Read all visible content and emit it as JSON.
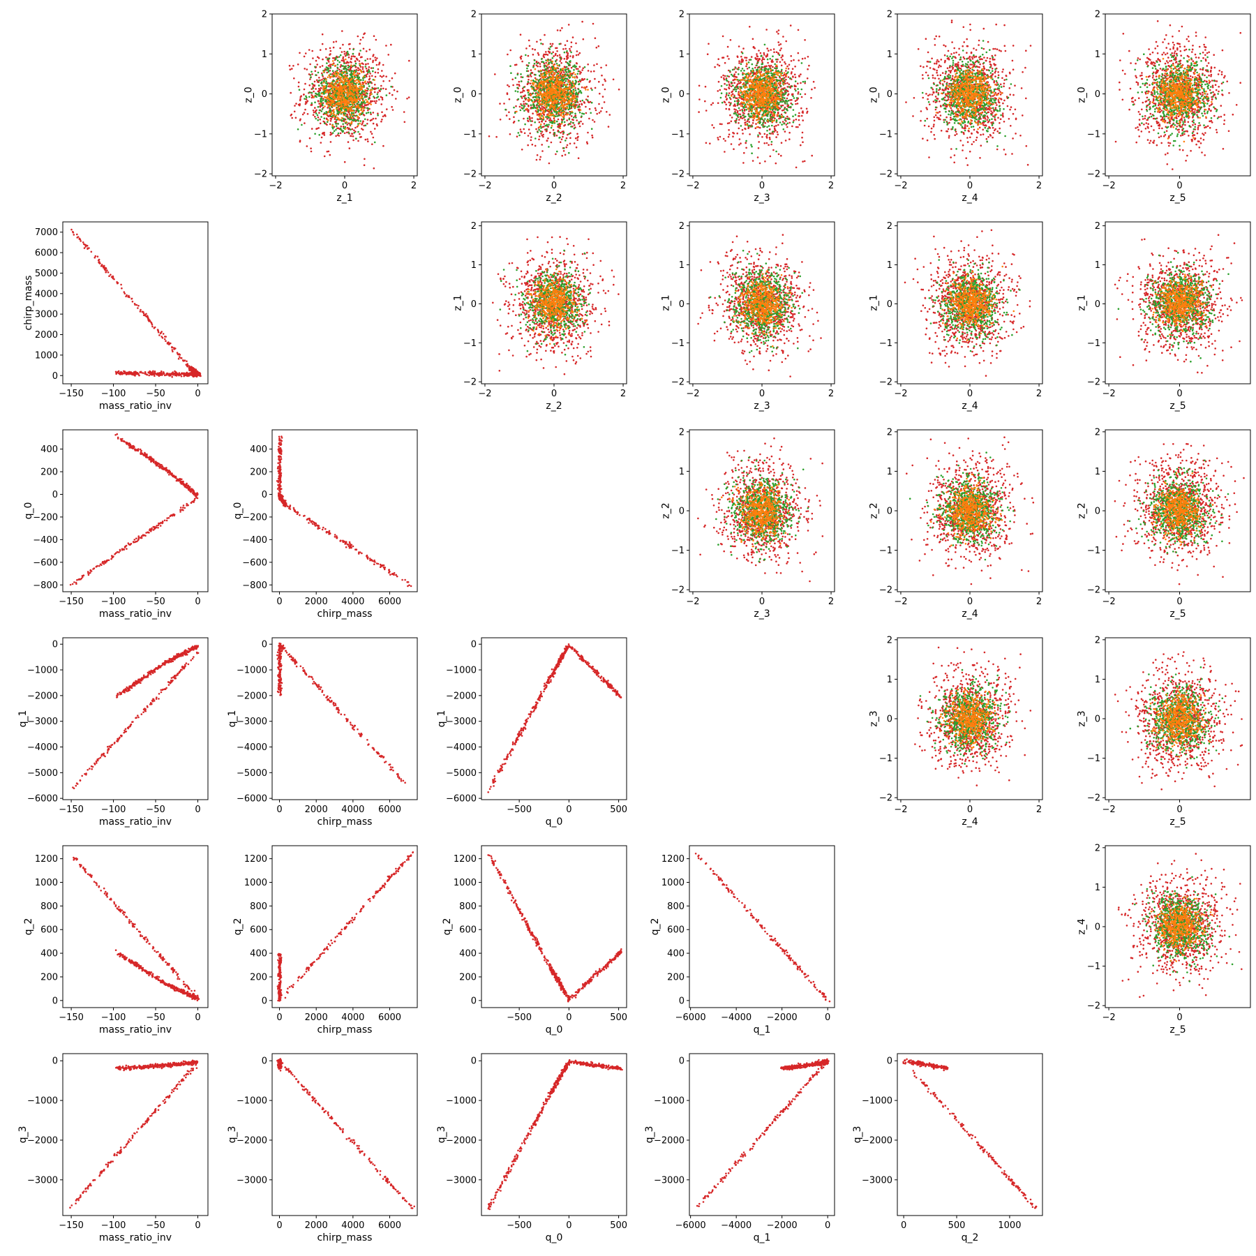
{
  "figure": {
    "colors": {
      "red": "#d62728",
      "green": "#2ca02c",
      "orange": "#ff7f0e",
      "frame": "#000000"
    }
  },
  "chart_data": [
    {
      "row": 0,
      "col": 1,
      "type": "scatter",
      "pattern": "gaussian",
      "xlabel": "z_1",
      "ylabel": "z_0",
      "xlim": [
        -2.1,
        2.1
      ],
      "ylim": [
        -2.05,
        2.0
      ],
      "xticks": [
        -2,
        0,
        2
      ],
      "yticks": [
        -2,
        -1,
        0,
        1,
        2
      ]
    },
    {
      "row": 0,
      "col": 2,
      "type": "scatter",
      "pattern": "gaussian",
      "xlabel": "z_2",
      "ylabel": "z_0",
      "xlim": [
        -2.1,
        2.1
      ],
      "ylim": [
        -2.05,
        2.0
      ],
      "xticks": [
        -2,
        0,
        2
      ],
      "yticks": [
        -2,
        -1,
        0,
        1,
        2
      ]
    },
    {
      "row": 0,
      "col": 3,
      "type": "scatter",
      "pattern": "gaussian",
      "xlabel": "z_3",
      "ylabel": "z_0",
      "xlim": [
        -2.1,
        2.1
      ],
      "ylim": [
        -2.05,
        2.0
      ],
      "xticks": [
        -2,
        0,
        2
      ],
      "yticks": [
        -2,
        -1,
        0,
        1,
        2
      ]
    },
    {
      "row": 0,
      "col": 4,
      "type": "scatter",
      "pattern": "gaussian",
      "xlabel": "z_4",
      "ylabel": "z_0",
      "xlim": [
        -2.1,
        2.1
      ],
      "ylim": [
        -2.05,
        2.0
      ],
      "xticks": [
        -2,
        0,
        2
      ],
      "yticks": [
        -2,
        -1,
        0,
        1,
        2
      ]
    },
    {
      "row": 0,
      "col": 5,
      "type": "scatter",
      "pattern": "gaussian",
      "xlabel": "z_5",
      "ylabel": "z_0",
      "xlim": [
        -2.1,
        2.0
      ],
      "ylim": [
        -2.05,
        2.0
      ],
      "xticks": [
        -2,
        0
      ],
      "yticks": [
        -2,
        -1,
        0,
        1,
        2
      ]
    },
    {
      "row": 1,
      "col": 0,
      "type": "scatter",
      "pattern": "line",
      "xlabel": "mass_ratio_inv",
      "ylabel": "chirp_mass",
      "xlim": [
        -160,
        12
      ],
      "ylim": [
        -400,
        7500
      ],
      "xticks": [
        -150,
        -100,
        -50,
        0
      ],
      "yticks": [
        0,
        1000,
        2000,
        3000,
        4000,
        5000,
        6000,
        7000
      ],
      "segments": [
        [
          [
            -152,
            7250
          ],
          [
            -10,
            400
          ],
          [
            2,
            50
          ]
        ],
        [
          [
            -97,
            120
          ],
          [
            -40,
            80
          ],
          [
            2,
            40
          ]
        ]
      ]
    },
    {
      "row": 1,
      "col": 2,
      "type": "scatter",
      "pattern": "gaussian",
      "xlabel": "z_2",
      "ylabel": "z_1",
      "xlim": [
        -2.1,
        2.1
      ],
      "ylim": [
        -2.05,
        2.1
      ],
      "xticks": [
        -2,
        0,
        2
      ],
      "yticks": [
        -2,
        -1,
        0,
        1,
        2
      ]
    },
    {
      "row": 1,
      "col": 3,
      "type": "scatter",
      "pattern": "gaussian",
      "xlabel": "z_3",
      "ylabel": "z_1",
      "xlim": [
        -2.1,
        2.1
      ],
      "ylim": [
        -2.05,
        2.1
      ],
      "xticks": [
        -2,
        0,
        2
      ],
      "yticks": [
        -2,
        -1,
        0,
        1,
        2
      ]
    },
    {
      "row": 1,
      "col": 4,
      "type": "scatter",
      "pattern": "gaussian",
      "xlabel": "z_4",
      "ylabel": "z_1",
      "xlim": [
        -2.1,
        2.1
      ],
      "ylim": [
        -2.05,
        2.1
      ],
      "xticks": [
        -2,
        0,
        2
      ],
      "yticks": [
        -2,
        -1,
        0,
        1,
        2
      ]
    },
    {
      "row": 1,
      "col": 5,
      "type": "scatter",
      "pattern": "gaussian",
      "xlabel": "z_5",
      "ylabel": "z_1",
      "xlim": [
        -2.1,
        2.0
      ],
      "ylim": [
        -2.05,
        2.1
      ],
      "xticks": [
        -2,
        0
      ],
      "yticks": [
        -2,
        -1,
        0,
        1,
        2
      ]
    },
    {
      "row": 2,
      "col": 0,
      "type": "scatter",
      "pattern": "line",
      "xlabel": "mass_ratio_inv",
      "ylabel": "q_0",
      "xlim": [
        -160,
        12
      ],
      "ylim": [
        -860,
        570
      ],
      "xticks": [
        -150,
        -100,
        -50,
        0
      ],
      "yticks": [
        -800,
        -600,
        -400,
        -200,
        0,
        200,
        400
      ],
      "segments": [
        [
          [
            -152,
            -810
          ],
          [
            0,
            -30
          ]
        ],
        [
          [
            -97,
            520
          ],
          [
            -40,
            230
          ],
          [
            0,
            -10
          ]
        ]
      ]
    },
    {
      "row": 2,
      "col": 1,
      "type": "scatter",
      "pattern": "line",
      "xlabel": "chirp_mass",
      "ylabel": "q_0",
      "xlim": [
        -400,
        7500
      ],
      "ylim": [
        -860,
        570
      ],
      "xticks": [
        0,
        2000,
        4000,
        6000
      ],
      "yticks": [
        -800,
        -600,
        -400,
        -200,
        0,
        200,
        400
      ],
      "segments": [
        [
          [
            7250,
            -810
          ],
          [
            300,
            -90
          ],
          [
            0,
            -10
          ]
        ],
        [
          [
            20,
            520
          ],
          [
            10,
            0
          ]
        ]
      ]
    },
    {
      "row": 2,
      "col": 3,
      "type": "scatter",
      "pattern": "gaussian",
      "xlabel": "z_3",
      "ylabel": "z_2",
      "xlim": [
        -2.1,
        2.1
      ],
      "ylim": [
        -2.05,
        2.05
      ],
      "xticks": [
        -2,
        0,
        2
      ],
      "yticks": [
        -2,
        -1,
        0,
        1,
        2
      ]
    },
    {
      "row": 2,
      "col": 4,
      "type": "scatter",
      "pattern": "gaussian",
      "xlabel": "z_4",
      "ylabel": "z_2",
      "xlim": [
        -2.1,
        2.1
      ],
      "ylim": [
        -2.05,
        2.05
      ],
      "xticks": [
        -2,
        0,
        2
      ],
      "yticks": [
        -2,
        -1,
        0,
        1,
        2
      ]
    },
    {
      "row": 2,
      "col": 5,
      "type": "scatter",
      "pattern": "gaussian",
      "xlabel": "z_5",
      "ylabel": "z_2",
      "xlim": [
        -2.1,
        2.0
      ],
      "ylim": [
        -2.05,
        2.05
      ],
      "xticks": [
        -2,
        0
      ],
      "yticks": [
        -2,
        -1,
        0,
        1,
        2
      ]
    },
    {
      "row": 3,
      "col": 0,
      "type": "scatter",
      "pattern": "line",
      "xlabel": "mass_ratio_inv",
      "ylabel": "q_1",
      "xlim": [
        -160,
        12
      ],
      "ylim": [
        -6050,
        250
      ],
      "xticks": [
        -150,
        -100,
        -50,
        0
      ],
      "yticks": [
        -6000,
        -5000,
        -4000,
        -3000,
        -2000,
        -1000,
        0
      ],
      "segments": [
        [
          [
            -152,
            -5750
          ],
          [
            0,
            -300
          ]
        ],
        [
          [
            -97,
            -2050
          ],
          [
            -40,
            -750
          ],
          [
            0,
            -80
          ]
        ]
      ]
    },
    {
      "row": 3,
      "col": 1,
      "type": "scatter",
      "pattern": "line",
      "xlabel": "chirp_mass",
      "ylabel": "q_1",
      "xlim": [
        -400,
        7500
      ],
      "ylim": [
        -6050,
        250
      ],
      "xticks": [
        0,
        2000,
        4000,
        6000
      ],
      "yticks": [
        -6000,
        -5000,
        -4000,
        -3000,
        -2000,
        -1000,
        0
      ],
      "segments": [
        [
          [
            7250,
            -5750
          ],
          [
            0,
            0
          ]
        ],
        [
          [
            20,
            -2050
          ],
          [
            10,
            0
          ]
        ]
      ]
    },
    {
      "row": 3,
      "col": 2,
      "type": "scatter",
      "pattern": "line",
      "xlabel": "q_0",
      "ylabel": "q_1",
      "xlim": [
        -880,
        580
      ],
      "ylim": [
        -6050,
        250
      ],
      "xticks": [
        -500,
        0,
        500
      ],
      "yticks": [
        -6000,
        -5000,
        -4000,
        -3000,
        -2000,
        -1000,
        0
      ],
      "segments": [
        [
          [
            -810,
            -5750
          ],
          [
            -200,
            -1400
          ],
          [
            0,
            -30
          ]
        ],
        [
          [
            0,
            -30
          ],
          [
            520,
            -2050
          ]
        ]
      ]
    },
    {
      "row": 3,
      "col": 4,
      "type": "scatter",
      "pattern": "gaussian",
      "xlabel": "z_4",
      "ylabel": "z_3",
      "xlim": [
        -2.1,
        2.1
      ],
      "ylim": [
        -2.05,
        2.05
      ],
      "xticks": [
        -2,
        0,
        2
      ],
      "yticks": [
        -2,
        -1,
        0,
        1,
        2
      ]
    },
    {
      "row": 3,
      "col": 5,
      "type": "scatter",
      "pattern": "gaussian",
      "xlabel": "z_5",
      "ylabel": "z_3",
      "xlim": [
        -2.1,
        2.0
      ],
      "ylim": [
        -2.05,
        2.05
      ],
      "xticks": [
        -2,
        0
      ],
      "yticks": [
        -2,
        -1,
        0,
        1,
        2
      ]
    },
    {
      "row": 4,
      "col": 0,
      "type": "scatter",
      "pattern": "line",
      "xlabel": "mass_ratio_inv",
      "ylabel": "q_2",
      "xlim": [
        -160,
        12
      ],
      "ylim": [
        -60,
        1310
      ],
      "xticks": [
        -150,
        -100,
        -50,
        0
      ],
      "yticks": [
        0,
        200,
        400,
        600,
        800,
        1000,
        1200
      ],
      "segments": [
        [
          [
            -152,
            1250
          ],
          [
            0,
            20
          ]
        ],
        [
          [
            -97,
            410
          ],
          [
            -40,
            150
          ],
          [
            0,
            10
          ]
        ]
      ]
    },
    {
      "row": 4,
      "col": 1,
      "type": "scatter",
      "pattern": "line",
      "xlabel": "chirp_mass",
      "ylabel": "q_2",
      "xlim": [
        -400,
        7500
      ],
      "ylim": [
        -60,
        1310
      ],
      "xticks": [
        0,
        2000,
        4000,
        6000
      ],
      "yticks": [
        0,
        200,
        400,
        600,
        800,
        1000,
        1200
      ],
      "segments": [
        [
          [
            0,
            0
          ],
          [
            7250,
            1250
          ]
        ],
        [
          [
            20,
            410
          ],
          [
            10,
            0
          ]
        ]
      ]
    },
    {
      "row": 4,
      "col": 2,
      "type": "scatter",
      "pattern": "line",
      "xlabel": "q_0",
      "ylabel": "q_2",
      "xlim": [
        -880,
        580
      ],
      "ylim": [
        -60,
        1310
      ],
      "xticks": [
        -500,
        0,
        500
      ],
      "yticks": [
        0,
        200,
        400,
        600,
        800,
        1000,
        1200
      ],
      "segments": [
        [
          [
            -810,
            1250
          ],
          [
            -200,
            300
          ],
          [
            0,
            10
          ]
        ],
        [
          [
            0,
            10
          ],
          [
            520,
            410
          ]
        ]
      ]
    },
    {
      "row": 4,
      "col": 3,
      "type": "scatter",
      "pattern": "line",
      "xlabel": "q_1",
      "ylabel": "q_2",
      "xlim": [
        -6050,
        300
      ],
      "ylim": [
        -60,
        1310
      ],
      "xticks": [
        -6000,
        -4000,
        -2000,
        0
      ],
      "yticks": [
        0,
        200,
        400,
        600,
        800,
        1000,
        1200
      ],
      "segments": [
        [
          [
            -5750,
            1250
          ],
          [
            0,
            0
          ]
        ]
      ]
    },
    {
      "row": 4,
      "col": 5,
      "type": "scatter",
      "pattern": "gaussian",
      "xlabel": "z_5",
      "ylabel": "z_4",
      "xlim": [
        -2.1,
        2.0
      ],
      "ylim": [
        -2.05,
        2.05
      ],
      "xticks": [
        -2,
        0
      ],
      "yticks": [
        -2,
        -1,
        0,
        1,
        2
      ]
    },
    {
      "row": 5,
      "col": 0,
      "type": "scatter",
      "pattern": "line",
      "xlabel": "mass_ratio_inv",
      "ylabel": "q_3",
      "xlim": [
        -160,
        12
      ],
      "ylim": [
        -3900,
        180
      ],
      "xticks": [
        -150,
        -100,
        -50,
        0
      ],
      "yticks": [
        -3000,
        -2000,
        -1000,
        0
      ],
      "segments": [
        [
          [
            -152,
            -3720
          ],
          [
            0,
            -50
          ]
        ],
        [
          [
            -97,
            -190
          ],
          [
            -40,
            -120
          ],
          [
            0,
            -40
          ]
        ]
      ]
    },
    {
      "row": 5,
      "col": 1,
      "type": "scatter",
      "pattern": "line",
      "xlabel": "chirp_mass",
      "ylabel": "q_3",
      "xlim": [
        -400,
        7500
      ],
      "ylim": [
        -3900,
        180
      ],
      "xticks": [
        0,
        2000,
        4000,
        6000
      ],
      "yticks": [
        -3000,
        -2000,
        -1000,
        0
      ],
      "segments": [
        [
          [
            0,
            0
          ],
          [
            7250,
            -3720
          ]
        ],
        [
          [
            20,
            -190
          ],
          [
            10,
            0
          ]
        ]
      ]
    },
    {
      "row": 5,
      "col": 2,
      "type": "scatter",
      "pattern": "line",
      "xlabel": "q_0",
      "ylabel": "q_3",
      "xlim": [
        -880,
        580
      ],
      "ylim": [
        -3900,
        180
      ],
      "xticks": [
        -500,
        0,
        500
      ],
      "yticks": [
        -3000,
        -2000,
        -1000,
        0
      ],
      "segments": [
        [
          [
            -810,
            -3720
          ],
          [
            -200,
            -900
          ],
          [
            0,
            -20
          ]
        ],
        [
          [
            0,
            -20
          ],
          [
            520,
            -190
          ]
        ]
      ]
    },
    {
      "row": 5,
      "col": 3,
      "type": "scatter",
      "pattern": "line",
      "xlabel": "q_1",
      "ylabel": "q_3",
      "xlim": [
        -6050,
        300
      ],
      "ylim": [
        -3900,
        180
      ],
      "xticks": [
        -6000,
        -4000,
        -2000,
        0
      ],
      "yticks": [
        -3000,
        -2000,
        -1000,
        0
      ],
      "segments": [
        [
          [
            -5750,
            -3720
          ],
          [
            0,
            0
          ]
        ],
        [
          [
            -2050,
            -190
          ],
          [
            -700,
            -100
          ],
          [
            0,
            -20
          ]
        ]
      ]
    },
    {
      "row": 5,
      "col": 4,
      "type": "scatter",
      "pattern": "line",
      "xlabel": "q_2",
      "ylabel": "q_3",
      "xlim": [
        -60,
        1310
      ],
      "ylim": [
        -3900,
        180
      ],
      "xticks": [
        0,
        500,
        1000
      ],
      "yticks": [
        -3000,
        -2000,
        -1000,
        0
      ],
      "segments": [
        [
          [
            0,
            0
          ],
          [
            1250,
            -3720
          ]
        ],
        [
          [
            0,
            0
          ],
          [
            410,
            -190
          ]
        ]
      ]
    }
  ]
}
